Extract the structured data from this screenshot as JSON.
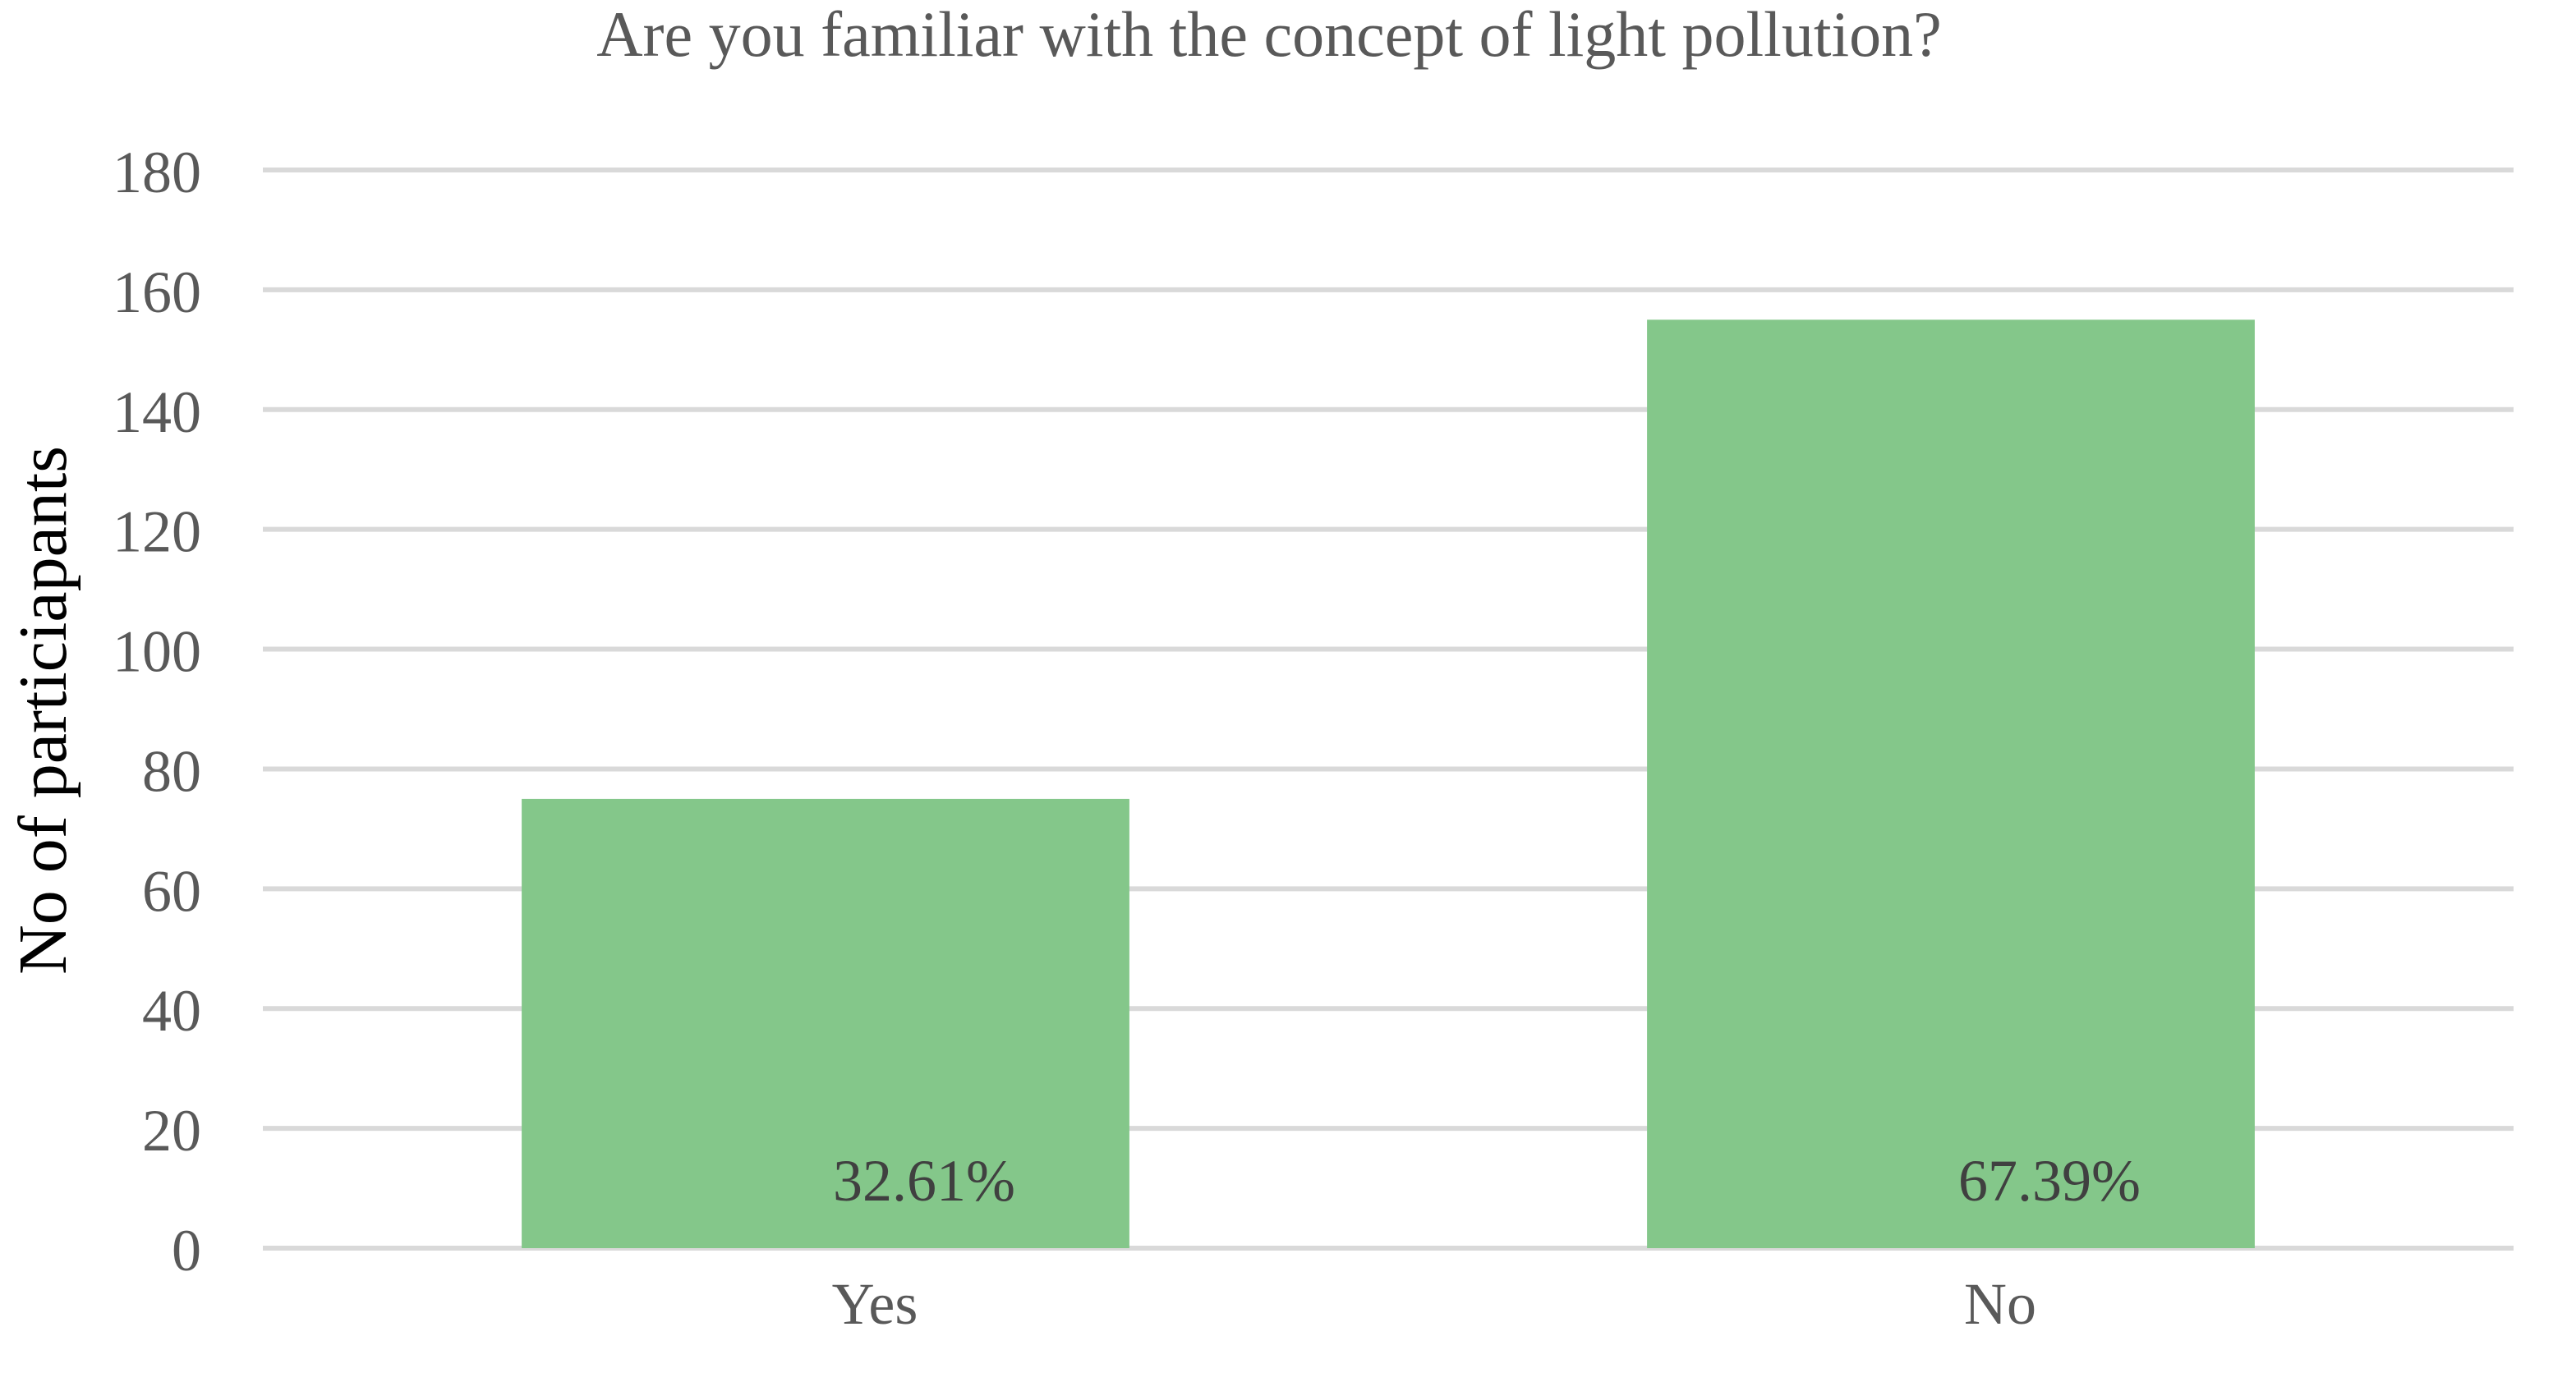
{
  "chart_data": {
    "type": "bar",
    "title": "Are you familiar with the concept of light pollution?",
    "xlabel": "",
    "ylabel": "No of particiapants",
    "categories": [
      "Yes",
      "No"
    ],
    "values": [
      75,
      155
    ],
    "data_labels": [
      "32.61%",
      "67.39%"
    ],
    "ylim": [
      0,
      180
    ],
    "yticks": [
      0,
      20,
      40,
      60,
      80,
      100,
      120,
      140,
      160,
      180
    ],
    "grid": true,
    "legend": "none",
    "colors": {
      "bar": "#84c78a",
      "grid": "#d9d9d9",
      "text": "#595959",
      "label": "#404040",
      "ylabel": "#000000"
    }
  }
}
